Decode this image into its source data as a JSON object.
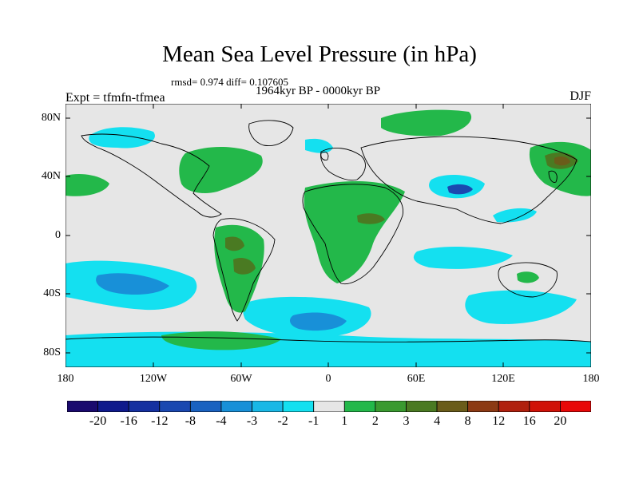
{
  "title": "Mean Sea Level Pressure (in hPa)",
  "stats": "rmsd= 0.974 diff= 0.107605",
  "subtitle": "1964kyr BP - 0000kyr BP",
  "left_label": "Expt = tfmfn-tfmea",
  "right_label": "DJF",
  "lat_labels": [
    "80N",
    "40N",
    "0",
    "40S",
    "80S"
  ],
  "lon_labels": [
    "180",
    "120W",
    "60W",
    "0",
    "60E",
    "120E",
    "180"
  ],
  "colorbar": {
    "labels": [
      "-20",
      "-16",
      "-12",
      "-8",
      "-4",
      "-3",
      "-2",
      "-1",
      "1",
      "2",
      "3",
      "4",
      "8",
      "12",
      "16",
      "20"
    ],
    "colors": [
      "#1a0a6e",
      "#0f1a8c",
      "#1530a0",
      "#1a48b0",
      "#1a62c0",
      "#1890d8",
      "#19b8e6",
      "#14e0f0",
      "#e6e6e6",
      "#23b84a",
      "#3a9a30",
      "#4a7a22",
      "#6a5c1a",
      "#8c3a14",
      "#b0200e",
      "#d01208",
      "#e80808"
    ]
  },
  "palette": {
    "background": "#e6e6e6",
    "pos1": "#23b84a",
    "pos2": "#4a7a22",
    "neg1": "#14e0f0",
    "neg2": "#1890d8",
    "neg3": "#1a48b0"
  }
}
